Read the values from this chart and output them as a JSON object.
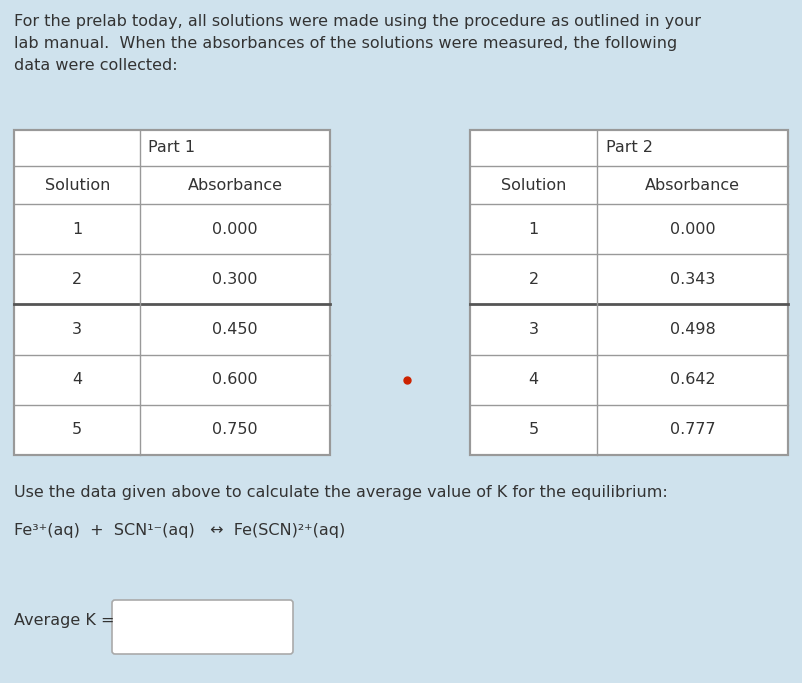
{
  "background_color": "#cfe2ed",
  "intro_text_lines": [
    "For the prelab today, all solutions were made using the procedure as outlined in your",
    "lab manual.  When the absorbances of the solutions were measured, the following",
    "data were collected:"
  ],
  "part1_header": "Part 1",
  "part2_header": "Part 2",
  "col_headers": [
    "Solution",
    "Absorbance"
  ],
  "part1_data": [
    [
      "1",
      "0.000"
    ],
    [
      "2",
      "0.300"
    ],
    [
      "3",
      "0.450"
    ],
    [
      "4",
      "0.600"
    ],
    [
      "5",
      "0.750"
    ]
  ],
  "part2_data": [
    [
      "1",
      "0.000"
    ],
    [
      "2",
      "0.343"
    ],
    [
      "3",
      "0.498"
    ],
    [
      "4",
      "0.642"
    ],
    [
      "5",
      "0.777"
    ]
  ],
  "footer_text1": "Use the data given above to calculate the average value of K for the equilibrium:",
  "footer_eq_parts": {
    "fe": "Fe",
    "fe_sup": "3+",
    "aq1": "(aq)  +  SCN",
    "scn_sup": "1−",
    "aq2": "(aq)   ↔  Fe(SCN)",
    "fescn_sup": "2+",
    "aq3": "(aq)"
  },
  "avg_k_label": "Average K =",
  "table_bg": "#ffffff",
  "text_color": "#333333",
  "border_color": "#999999",
  "thick_line_color": "#555555",
  "dot_color": "#cc2200",
  "dot_row": 3
}
